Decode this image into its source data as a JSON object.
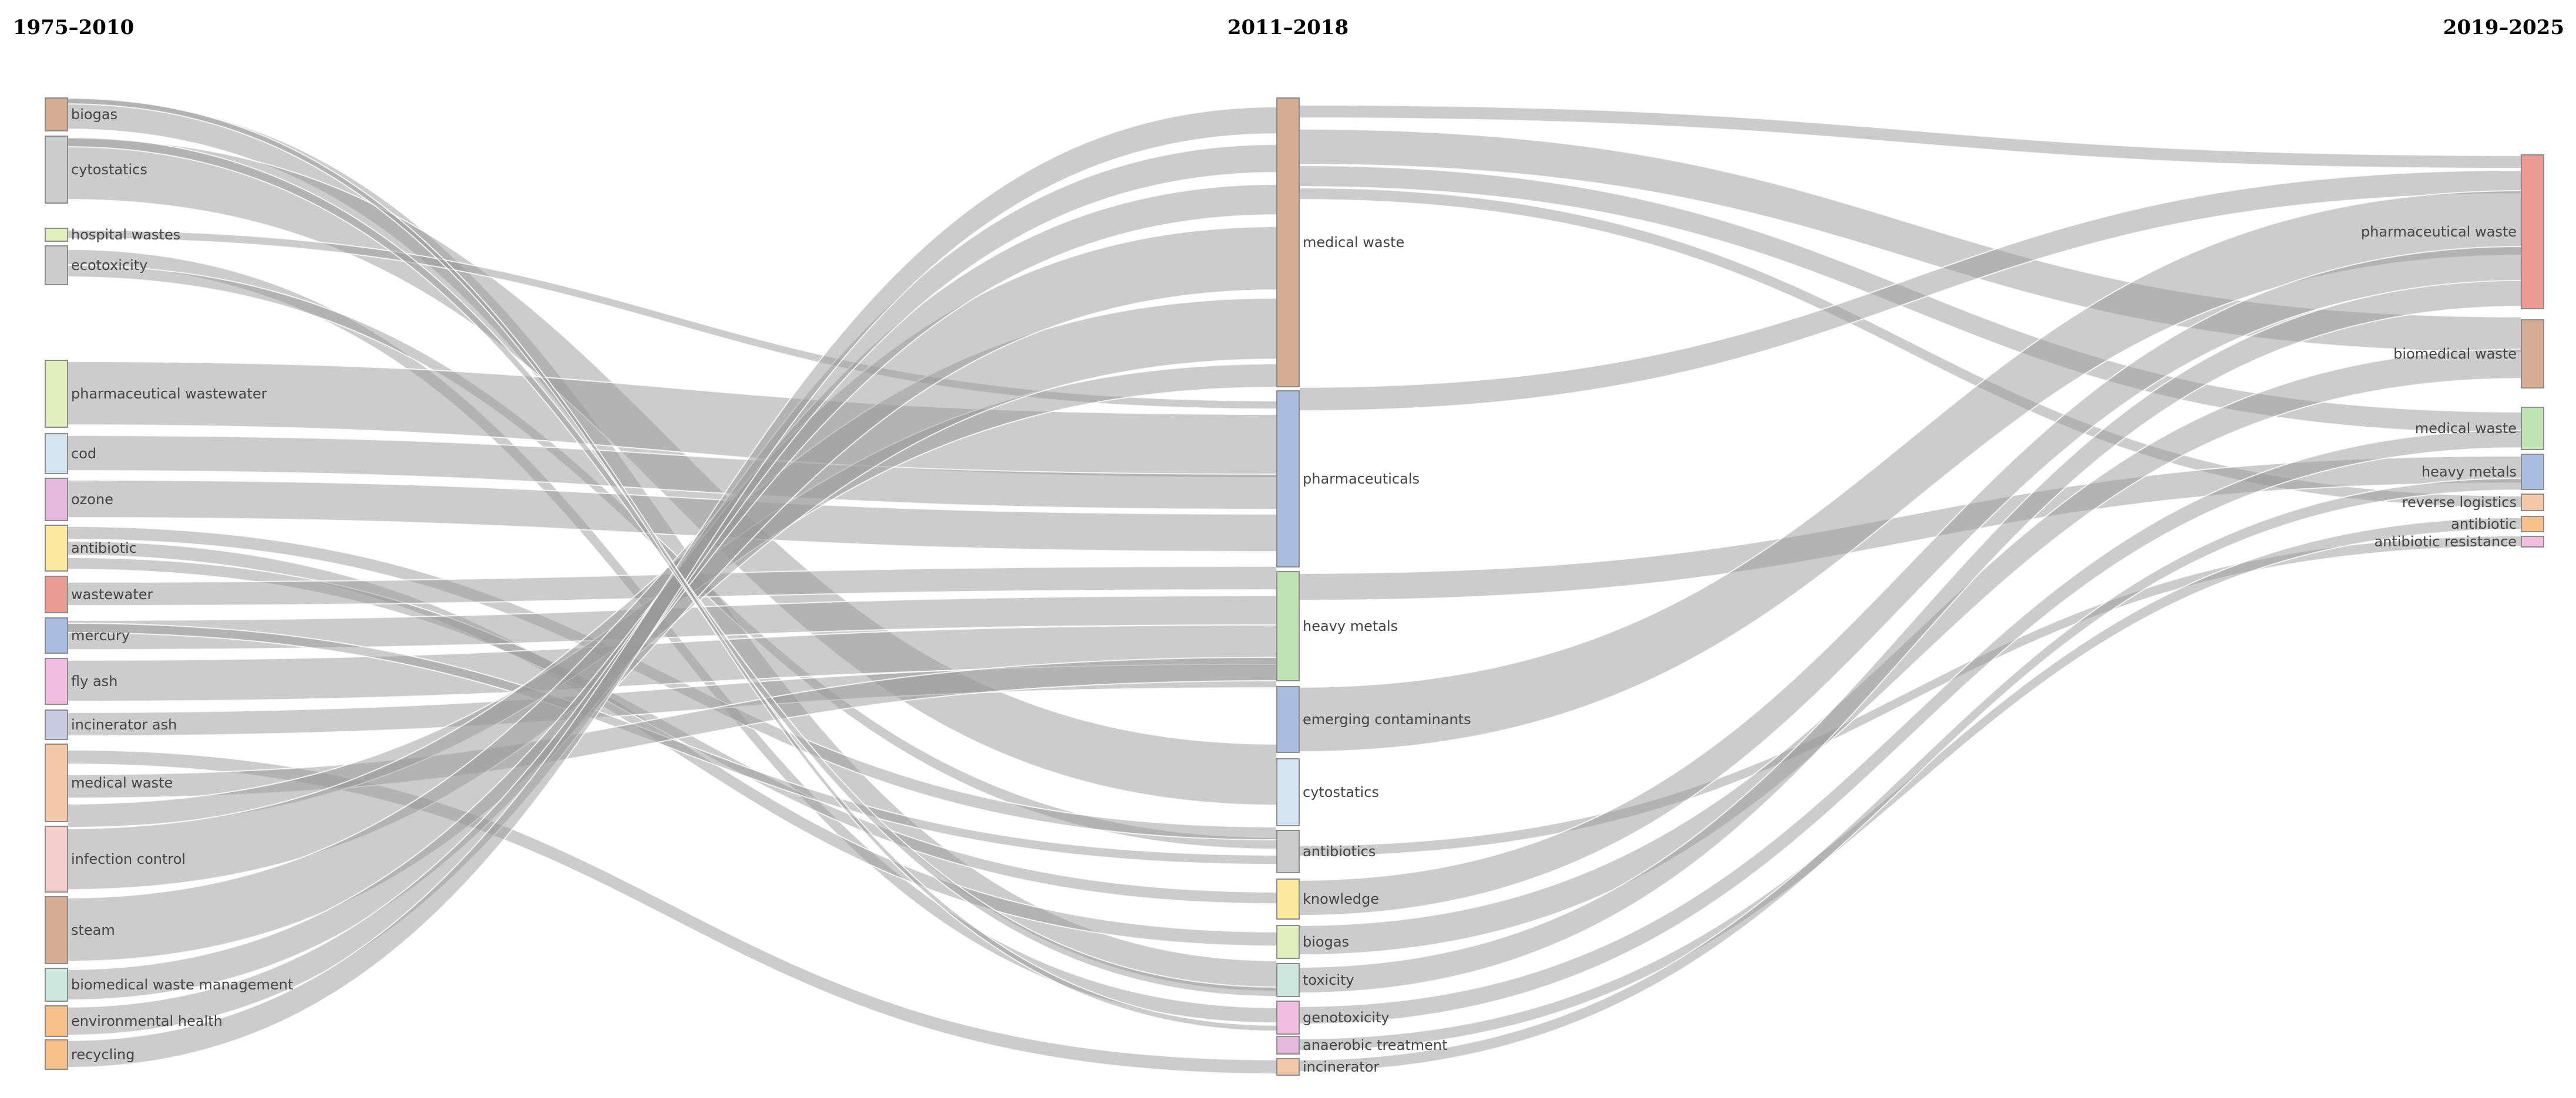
{
  "periods": [
    "1975–2010",
    "2011–2018",
    "2019–2025"
  ],
  "colors": {
    "brown": "#d5ab94",
    "gray": "#cccccc",
    "lightgreen": "#dff0be",
    "green": "#bfe3b4",
    "blue": "#a9bde0",
    "lightblue": "#d5e4f0",
    "pink": "#f2bfe0",
    "yellow": "#fde9a0",
    "red": "#eb9a94",
    "lavender": "#c8cbe2",
    "peach": "#f6c8aa",
    "rose": "#f6cdcd",
    "mint": "#cde9df",
    "orange": "#f7bf8a",
    "mauve": "#e4b9dc"
  },
  "nodes": [
    {
      "id": "l_biogas",
      "label": "biogas",
      "col": 0,
      "color": "brown"
    },
    {
      "id": "l_cytostatics",
      "label": "cytostatics",
      "col": 0,
      "color": "gray"
    },
    {
      "id": "l_hospital",
      "label": "hospital wastes",
      "col": 0,
      "color": "lightgreen"
    },
    {
      "id": "l_ecotox",
      "label": "ecotoxicity",
      "col": 0,
      "color": "gray"
    },
    {
      "id": "l_pharmaww",
      "label": "pharmaceutical wastewater",
      "col": 0,
      "color": "lightgreen"
    },
    {
      "id": "l_cod",
      "label": "cod",
      "col": 0,
      "color": "lightblue"
    },
    {
      "id": "l_ozone",
      "label": "ozone",
      "col": 0,
      "color": "mauve"
    },
    {
      "id": "l_antibiotic",
      "label": "antibiotic",
      "col": 0,
      "color": "yellow"
    },
    {
      "id": "l_wastewater",
      "label": "wastewater",
      "col": 0,
      "color": "red"
    },
    {
      "id": "l_mercury",
      "label": "mercury",
      "col": 0,
      "color": "blue"
    },
    {
      "id": "l_flyash",
      "label": "fly ash",
      "col": 0,
      "color": "pink"
    },
    {
      "id": "l_incash",
      "label": "incinerator ash",
      "col": 0,
      "color": "lavender"
    },
    {
      "id": "l_medwaste",
      "label": "medical waste",
      "col": 0,
      "color": "peach"
    },
    {
      "id": "l_infection",
      "label": "infection control",
      "col": 0,
      "color": "rose"
    },
    {
      "id": "l_steam",
      "label": "steam",
      "col": 0,
      "color": "brown"
    },
    {
      "id": "l_bwm",
      "label": "biomedical waste management",
      "col": 0,
      "color": "mint"
    },
    {
      "id": "l_envhealth",
      "label": "environmental health",
      "col": 0,
      "color": "orange"
    },
    {
      "id": "l_recycling",
      "label": "recycling",
      "col": 0,
      "color": "orange"
    },
    {
      "id": "m_medwaste",
      "label": "medical waste",
      "col": 1,
      "color": "brown"
    },
    {
      "id": "m_pharma",
      "label": "pharmaceuticals",
      "col": 1,
      "color": "blue"
    },
    {
      "id": "m_heavy",
      "label": "heavy metals",
      "col": 1,
      "color": "green"
    },
    {
      "id": "m_emerging",
      "label": "emerging contaminants",
      "col": 1,
      "color": "blue"
    },
    {
      "id": "m_cytostatics",
      "label": "cytostatics",
      "col": 1,
      "color": "lightblue"
    },
    {
      "id": "m_antibiotics",
      "label": "antibiotics",
      "col": 1,
      "color": "gray"
    },
    {
      "id": "m_knowledge",
      "label": "knowledge",
      "col": 1,
      "color": "yellow"
    },
    {
      "id": "m_biogas",
      "label": "biogas",
      "col": 1,
      "color": "lightgreen"
    },
    {
      "id": "m_toxicity",
      "label": "toxicity",
      "col": 1,
      "color": "mint"
    },
    {
      "id": "m_genotox",
      "label": "genotoxicity",
      "col": 1,
      "color": "pink"
    },
    {
      "id": "m_anaerobic",
      "label": "anaerobic treatment",
      "col": 1,
      "color": "mauve"
    },
    {
      "id": "m_incinerator",
      "label": "incinerator",
      "col": 1,
      "color": "peach"
    },
    {
      "id": "r_pharmawaste",
      "label": "pharmaceutical waste",
      "col": 2,
      "color": "red"
    },
    {
      "id": "r_biomed",
      "label": "biomedical waste",
      "col": 2,
      "color": "brown"
    },
    {
      "id": "r_medwaste",
      "label": "medical waste",
      "col": 2,
      "color": "green"
    },
    {
      "id": "r_heavy",
      "label": "heavy metals",
      "col": 2,
      "color": "blue"
    },
    {
      "id": "r_reverse",
      "label": "reverse logistics",
      "col": 2,
      "color": "peach"
    },
    {
      "id": "r_antibiotic",
      "label": "antibiotic",
      "col": 2,
      "color": "orange"
    },
    {
      "id": "r_amr",
      "label": "antibiotic resistance",
      "col": 2,
      "color": "pink"
    }
  ]
}
